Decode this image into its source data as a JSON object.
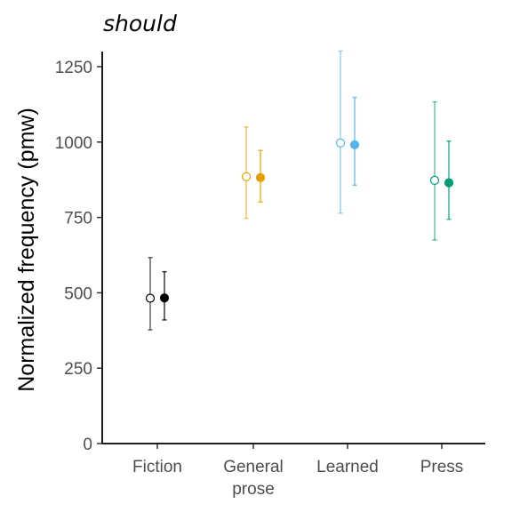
{
  "chart_data": {
    "type": "scatter",
    "subtype": "point-with-error-bars",
    "title": "should",
    "xlabel": "",
    "ylabel": "Normalized frequency (pmw)",
    "ylim": [
      0,
      1300
    ],
    "yticks": [
      0,
      250,
      500,
      750,
      1000,
      1250
    ],
    "grid": false,
    "legend": "none",
    "categories": [
      "Fiction",
      "General\nprose",
      "Learned",
      "Press"
    ],
    "colors": [
      "#000000",
      "#E69F00",
      "#56B4E9",
      "#009E73"
    ],
    "series": [
      {
        "marker": "open-circle",
        "points": [
          {
            "category": "Fiction",
            "y": 482,
            "low": 377,
            "high": 617
          },
          {
            "category": "General\nprose",
            "y": 885,
            "low": 747,
            "high": 1050
          },
          {
            "category": "Learned",
            "y": 997,
            "low": 764,
            "high": 1302
          },
          {
            "category": "Press",
            "y": 873,
            "low": 675,
            "high": 1133
          }
        ]
      },
      {
        "marker": "filled-circle",
        "points": [
          {
            "category": "Fiction",
            "y": 483,
            "low": 410,
            "high": 570
          },
          {
            "category": "General\nprose",
            "y": 882,
            "low": 801,
            "high": 972
          },
          {
            "category": "Learned",
            "y": 991,
            "low": 857,
            "high": 1148
          },
          {
            "category": "Press",
            "y": 865,
            "low": 744,
            "high": 1003
          }
        ]
      }
    ]
  }
}
